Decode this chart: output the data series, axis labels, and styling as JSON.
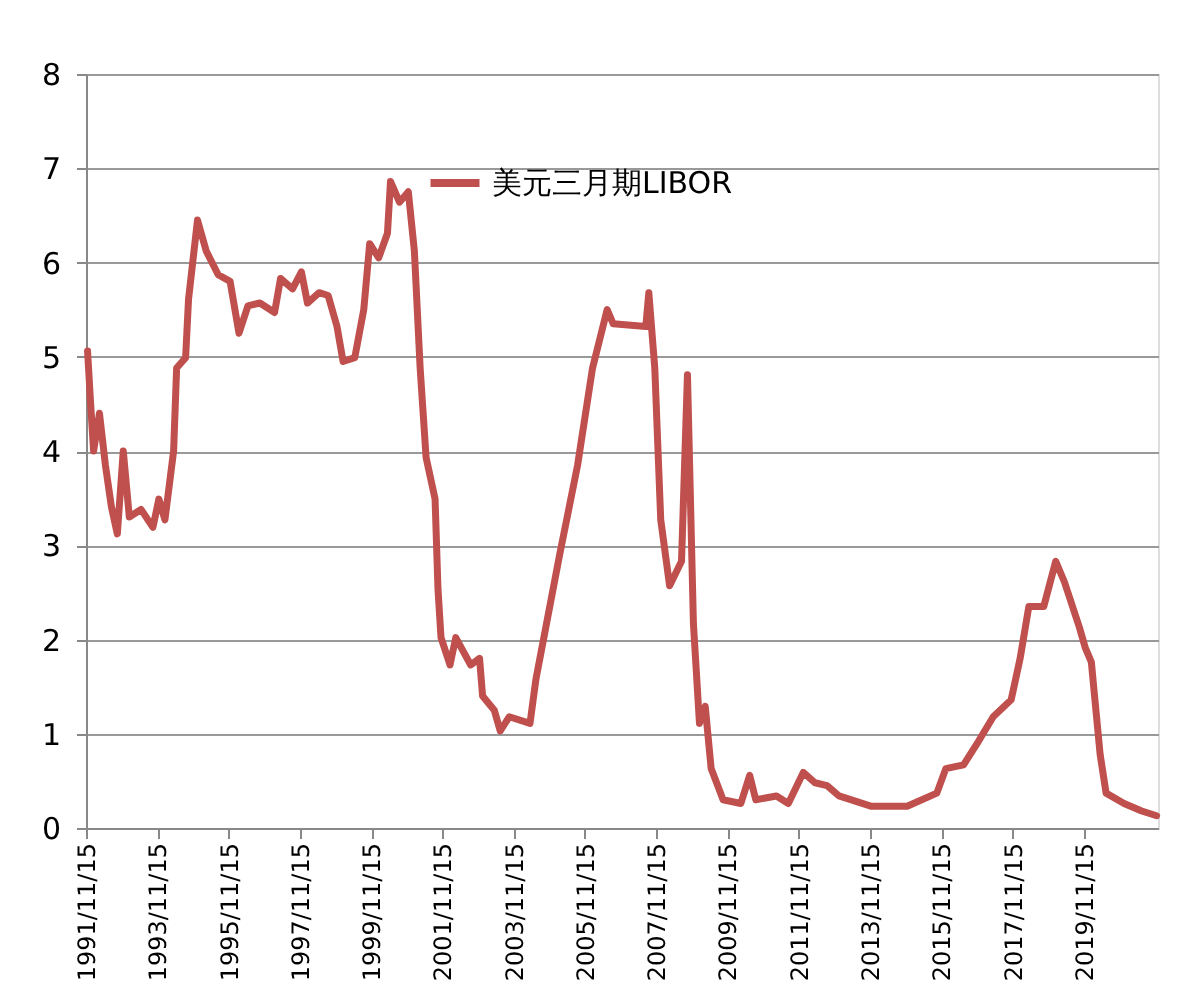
{
  "chart_data": {
    "type": "line",
    "x": [
      "1991-12",
      "1992-01",
      "1992-02",
      "1992-04",
      "1992-06",
      "1992-08",
      "1992-10",
      "1992-12",
      "1993-02",
      "1993-06",
      "1993-10",
      "1993-12",
      "1994-02",
      "1994-05",
      "1994-06",
      "1994-09",
      "1994-10",
      "1995-01",
      "1995-04",
      "1995-08",
      "1995-12",
      "1996-03",
      "1996-06",
      "1996-10",
      "1997-03",
      "1997-05",
      "1997-09",
      "1997-12",
      "1998-02",
      "1998-06",
      "1998-09",
      "1998-12",
      "1999-02",
      "1999-06",
      "1999-09",
      "1999-11",
      "2000-02",
      "2000-05",
      "2000-06",
      "2000-09",
      "2000-12",
      "2001-02",
      "2001-04",
      "2001-06",
      "2001-09",
      "2001-10",
      "2001-11",
      "2002-02",
      "2002-04",
      "2002-09",
      "2002-12",
      "2003-01",
      "2003-05",
      "2003-07",
      "2003-10",
      "2004-05",
      "2004-07",
      "2005-03",
      "2005-09",
      "2006-02",
      "2006-07",
      "2006-09",
      "2007-08",
      "2007-09",
      "2007-11",
      "2008-01",
      "2008-04",
      "2008-08",
      "2008-10",
      "2008-12",
      "2009-02",
      "2009-04",
      "2009-06",
      "2009-10",
      "2010-04",
      "2010-07",
      "2010-09",
      "2011-04",
      "2011-08",
      "2012-01",
      "2012-05",
      "2012-09",
      "2013-01",
      "2013-12",
      "2014-12",
      "2015-10",
      "2016-01",
      "2016-07",
      "2016-12",
      "2017-05",
      "2017-11",
      "2018-02",
      "2018-05",
      "2018-10",
      "2019-02",
      "2019-05",
      "2019-10",
      "2019-12",
      "2020-02",
      "2020-03",
      "2020-05",
      "2020-07",
      "2021-01",
      "2021-07",
      "2021-12"
    ],
    "series": [
      {
        "name": "美元三月期LIBOR",
        "color": "#c0504d",
        "values": [
          5.06,
          4.51,
          4.0,
          4.4,
          3.85,
          3.41,
          3.12,
          4.0,
          3.3,
          3.38,
          3.19,
          3.49,
          3.27,
          4.0,
          4.88,
          4.99,
          5.61,
          6.45,
          6.12,
          5.87,
          5.8,
          5.25,
          5.54,
          5.57,
          5.47,
          5.83,
          5.72,
          5.9,
          5.57,
          5.68,
          5.65,
          5.32,
          4.95,
          4.99,
          5.5,
          6.2,
          6.05,
          6.31,
          6.86,
          6.64,
          6.75,
          6.12,
          4.88,
          3.93,
          3.49,
          2.53,
          2.02,
          1.73,
          2.02,
          1.73,
          1.8,
          1.4,
          1.25,
          1.03,
          1.18,
          1.11,
          1.58,
          2.9,
          3.85,
          4.88,
          5.5,
          5.35,
          5.32,
          5.68,
          4.88,
          3.27,
          2.57,
          2.83,
          4.81,
          2.17,
          1.11,
          1.29,
          0.63,
          0.3,
          0.26,
          0.56,
          0.3,
          0.34,
          0.26,
          0.59,
          0.48,
          0.45,
          0.34,
          0.23,
          0.23,
          0.37,
          0.63,
          0.67,
          0.92,
          1.18,
          1.36,
          1.8,
          2.35,
          2.35,
          2.83,
          2.61,
          2.13,
          1.91,
          1.76,
          1.44,
          0.78,
          0.37,
          0.26,
          0.18,
          0.13
        ]
      }
    ],
    "xlim": [
      "1991-11-15",
      "2021-12-15"
    ],
    "xticks": [
      {
        "value": "1991-11-15",
        "label": "1991/11/15"
      },
      {
        "value": "1993-11-15",
        "label": "1993/11/15"
      },
      {
        "value": "1995-11-15",
        "label": "1995/11/15"
      },
      {
        "value": "1997-11-15",
        "label": "1997/11/15"
      },
      {
        "value": "1999-11-15",
        "label": "1999/11/15"
      },
      {
        "value": "2001-11-15",
        "label": "2001/11/15"
      },
      {
        "value": "2003-11-15",
        "label": "2003/11/15"
      },
      {
        "value": "2005-11-15",
        "label": "2005/11/15"
      },
      {
        "value": "2007-11-15",
        "label": "2007/11/15"
      },
      {
        "value": "2009-11-15",
        "label": "2009/11/15"
      },
      {
        "value": "2011-11-15",
        "label": "2011/11/15"
      },
      {
        "value": "2013-11-15",
        "label": "2013/11/15"
      },
      {
        "value": "2015-11-15",
        "label": "2015/11/15"
      },
      {
        "value": "2017-11-15",
        "label": "2017/11/15"
      },
      {
        "value": "2019-11-15",
        "label": "2019/11/15"
      }
    ],
    "ylim": [
      0,
      8
    ],
    "yticks": [
      0,
      1,
      2,
      3,
      4,
      5,
      6,
      7,
      8
    ],
    "grid": "y",
    "legend": "top",
    "marker": "none",
    "line_style": "solid"
  }
}
